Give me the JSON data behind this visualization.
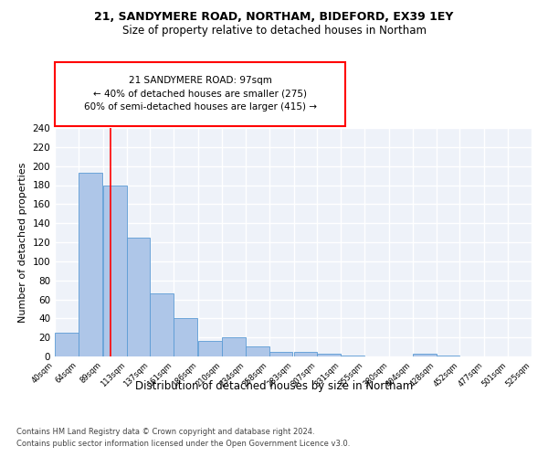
{
  "title1": "21, SANDYMERE ROAD, NORTHAM, BIDEFORD, EX39 1EY",
  "title2": "Size of property relative to detached houses in Northam",
  "xlabel": "Distribution of detached houses by size in Northam",
  "ylabel": "Number of detached properties",
  "bin_labels": [
    "40sqm",
    "64sqm",
    "89sqm",
    "113sqm",
    "137sqm",
    "161sqm",
    "186sqm",
    "210sqm",
    "234sqm",
    "258sqm",
    "283sqm",
    "307sqm",
    "331sqm",
    "355sqm",
    "380sqm",
    "404sqm",
    "428sqm",
    "452sqm",
    "477sqm",
    "501sqm",
    "525sqm"
  ],
  "bar_heights": [
    25,
    193,
    180,
    125,
    66,
    40,
    16,
    20,
    11,
    5,
    5,
    3,
    1,
    0,
    0,
    3,
    1,
    0,
    0,
    0
  ],
  "bar_color": "#aec6e8",
  "bar_edge_color": "#5b9bd5",
  "red_line_x": 97,
  "bin_edges": [
    40,
    64,
    89,
    113,
    137,
    161,
    186,
    210,
    234,
    258,
    283,
    307,
    331,
    355,
    380,
    404,
    428,
    452,
    477,
    501,
    525
  ],
  "annotation_title": "21 SANDYMERE ROAD: 97sqm",
  "annotation_line1": "← 40% of detached houses are smaller (275)",
  "annotation_line2": "60% of semi-detached houses are larger (415) →",
  "footer1": "Contains HM Land Registry data © Crown copyright and database right 2024.",
  "footer2": "Contains public sector information licensed under the Open Government Licence v3.0.",
  "ylim": [
    0,
    240
  ],
  "yticks": [
    0,
    20,
    40,
    60,
    80,
    100,
    120,
    140,
    160,
    180,
    200,
    220,
    240
  ],
  "bg_color": "#eef2f9",
  "grid_color": "#ffffff"
}
